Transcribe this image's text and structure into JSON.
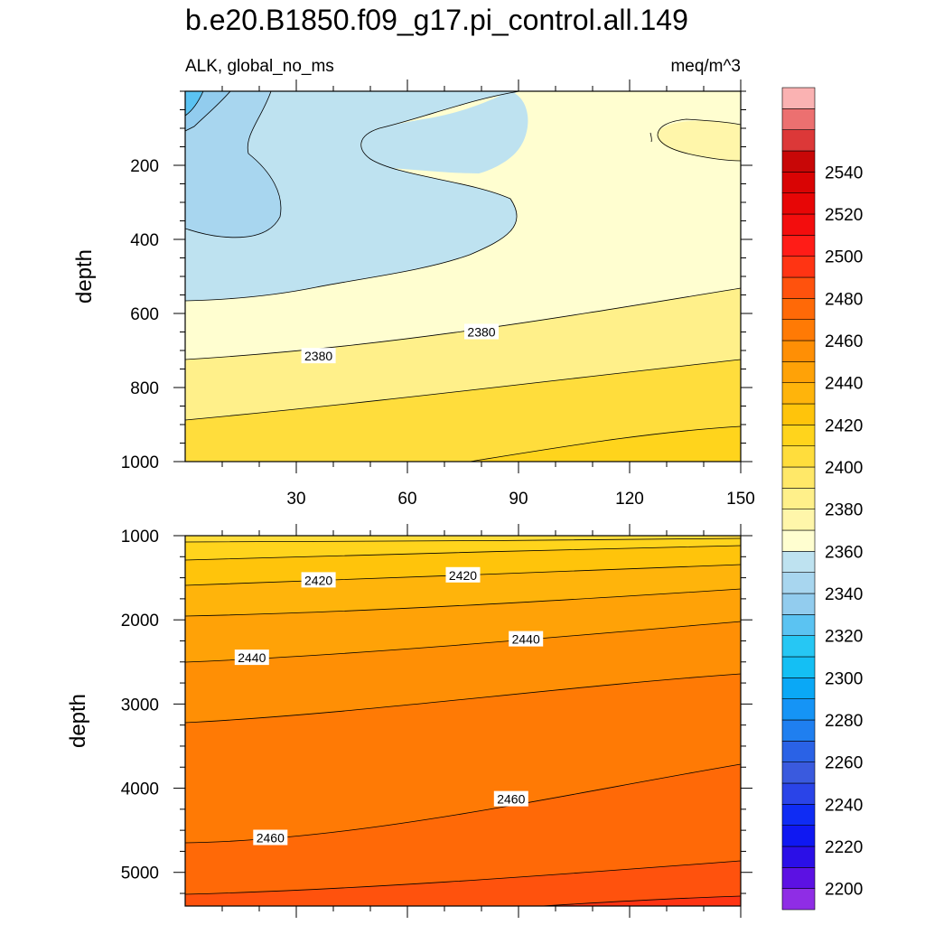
{
  "title": "b.e20.B1850.f09_g17.pi_control.all.149",
  "left_subtitle": "ALK, global_no_ms",
  "right_subtitle": "meq/m^3",
  "chart_data": [
    {
      "type": "contour",
      "panel": "top",
      "xlabel": "",
      "ylabel": "depth",
      "xlim": [
        0,
        150
      ],
      "ylim": [
        1000,
        0
      ],
      "x_ticks": [
        30,
        60,
        90,
        120,
        150
      ],
      "y_ticks": [
        200,
        400,
        600,
        800,
        1000
      ],
      "contour_labels": [
        {
          "text": "2380",
          "x": 36,
          "y": 715
        },
        {
          "text": "2380",
          "x": 80,
          "y": 650
        }
      ]
    },
    {
      "type": "contour",
      "panel": "bottom",
      "xlabel": "",
      "ylabel": "depth",
      "xlim": [
        0,
        150
      ],
      "ylim": [
        5400,
        1000
      ],
      "x_ticks": [
        30,
        60,
        90,
        120,
        150
      ],
      "y_ticks": [
        1000,
        2000,
        3000,
        4000,
        5000
      ],
      "contour_labels": [
        {
          "text": "2420",
          "x": 36,
          "y": 1530
        },
        {
          "text": "2420",
          "x": 75,
          "y": 1470
        },
        {
          "text": "2440",
          "x": 18,
          "y": 2450
        },
        {
          "text": "2440",
          "x": 92,
          "y": 2230
        },
        {
          "text": "2460",
          "x": 23,
          "y": 4590
        },
        {
          "text": "2460",
          "x": 88,
          "y": 4130
        }
      ]
    }
  ],
  "colorbar": {
    "levels": [
      2200,
      2220,
      2240,
      2260,
      2280,
      2300,
      2320,
      2340,
      2360,
      2380,
      2400,
      2420,
      2440,
      2460,
      2480,
      2500,
      2520,
      2540
    ],
    "colors": [
      "#8f2de5",
      "#5c11e3",
      "#2b0fe7",
      "#0f18f2",
      "#0f2cf4",
      "#2a44e8",
      "#3a5ade",
      "#2a62e6",
      "#1f7ff0",
      "#1594f6",
      "#0aa8f6",
      "#14bff4",
      "#26c7f4",
      "#5bc3f2",
      "#92ccee",
      "#a8d6ef",
      "#bee2f0",
      "#fffed0",
      "#fff6aa",
      "#fff08a",
      "#ffe868",
      "#ffdd3c",
      "#ffd41c",
      "#ffc40b",
      "#ffb40b",
      "#ffa207",
      "#ff8f05",
      "#ff7a05",
      "#ff6907",
      "#ff520d",
      "#ff3413",
      "#ff1c17",
      "#f30d0d",
      "#e70606",
      "#d90404",
      "#c80707",
      "#dc3838",
      "#ec7070",
      "#fab2b2"
    ]
  }
}
